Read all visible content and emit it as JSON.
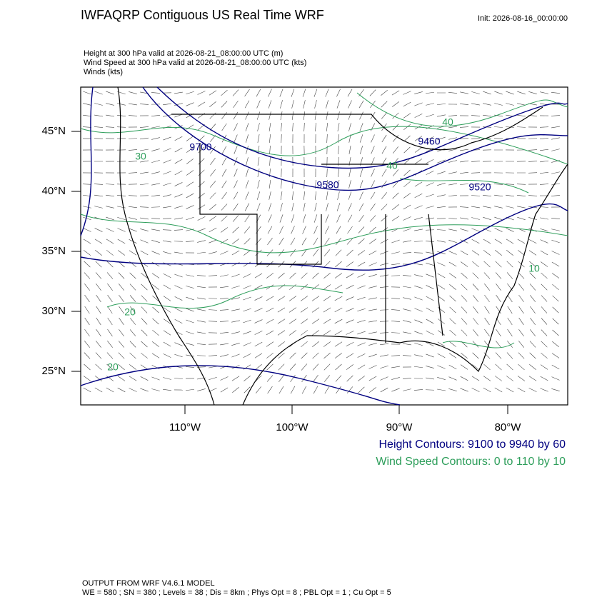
{
  "header": {
    "title": "IWFAQRP Contiguous US Real Time WRF",
    "init": "Init: 2026-08-16_00:00:00",
    "fields": [
      "Height at 300 hPa valid at 2026-08-21_08:00:00 UTC   (m)",
      "Wind Speed at 300 hPa valid at 2026-08-21_08:00:00 UTC   (kts)",
      "Winds   (kts)"
    ]
  },
  "map": {
    "lat_labels": [
      "45°N",
      "40°N",
      "35°N",
      "30°N",
      "25°N"
    ],
    "lon_labels": [
      "110°W",
      "100°W",
      "90°W",
      "80°W"
    ],
    "height_labels": [
      "9700",
      "9460",
      "9580",
      "9520"
    ],
    "speed_labels": [
      "40",
      "30",
      "20",
      "20",
      "10",
      "40"
    ]
  },
  "legend": {
    "height": "Height Contours: 9100 to 9940 by 60",
    "speed": "Wind Speed Contours: 0 to 110 by 10"
  },
  "footer": {
    "model": "OUTPUT FROM WRF V4.6.1 MODEL",
    "settings": "WE = 580 ; SN = 380 ; Levels = 38 ; Dis = 8km ; Phys Opt = 8 ; PBL Opt = 1 ; Cu Opt = 5"
  }
}
